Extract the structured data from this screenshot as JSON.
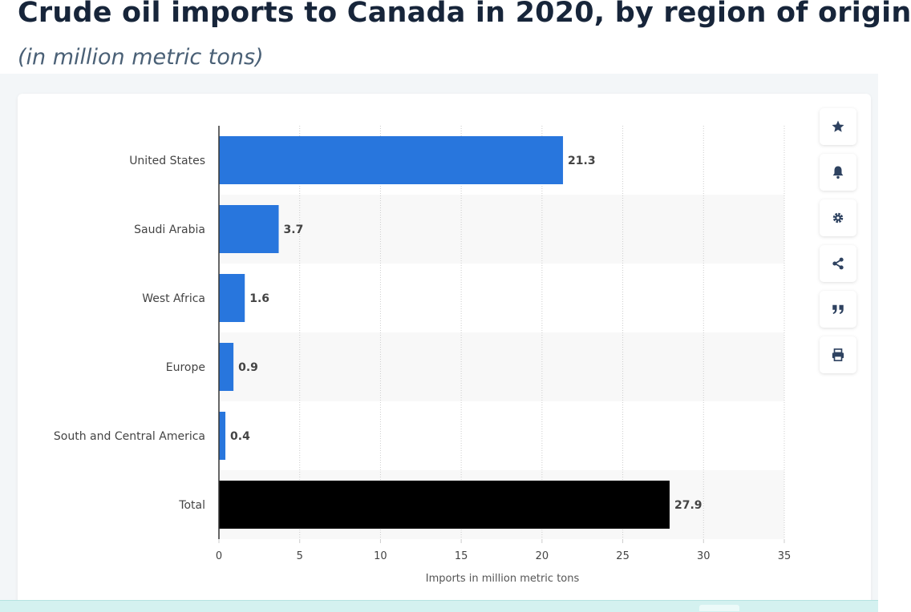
{
  "header": {
    "title": "Crude oil imports to Canada in 2020, by region of origin",
    "subtitle": "(in million metric tons)"
  },
  "toolbar": {
    "buttons": [
      {
        "icon": "star-icon"
      },
      {
        "icon": "bell-icon"
      },
      {
        "icon": "gear-icon"
      },
      {
        "icon": "share-icon"
      },
      {
        "icon": "quote-icon"
      },
      {
        "icon": "print-icon"
      }
    ]
  },
  "colors": {
    "bar": "#2876dd",
    "total_bar": "#000000",
    "band": "#f8f8f8",
    "grid": "#cccccc",
    "axis": "#333333",
    "text": "#444444",
    "toolbar_icon": "#2e4260"
  },
  "chart_data": {
    "type": "bar",
    "orientation": "horizontal",
    "categories": [
      "United States",
      "Saudi Arabia",
      "West Africa",
      "Europe",
      "South and Central America",
      "Total"
    ],
    "values": [
      21.3,
      3.7,
      1.6,
      0.9,
      0.4,
      27.9
    ],
    "data_labels": [
      "21.3",
      "3.7",
      "1.6",
      "0.9",
      "0.4",
      "27.9"
    ],
    "title": "",
    "xlabel": "Imports in million metric tons",
    "ylabel": "",
    "xlim": [
      0,
      35
    ],
    "xticks": [
      0,
      5,
      10,
      15,
      20,
      25,
      30,
      35
    ],
    "grid": "vertical dotted",
    "legend": "none"
  }
}
